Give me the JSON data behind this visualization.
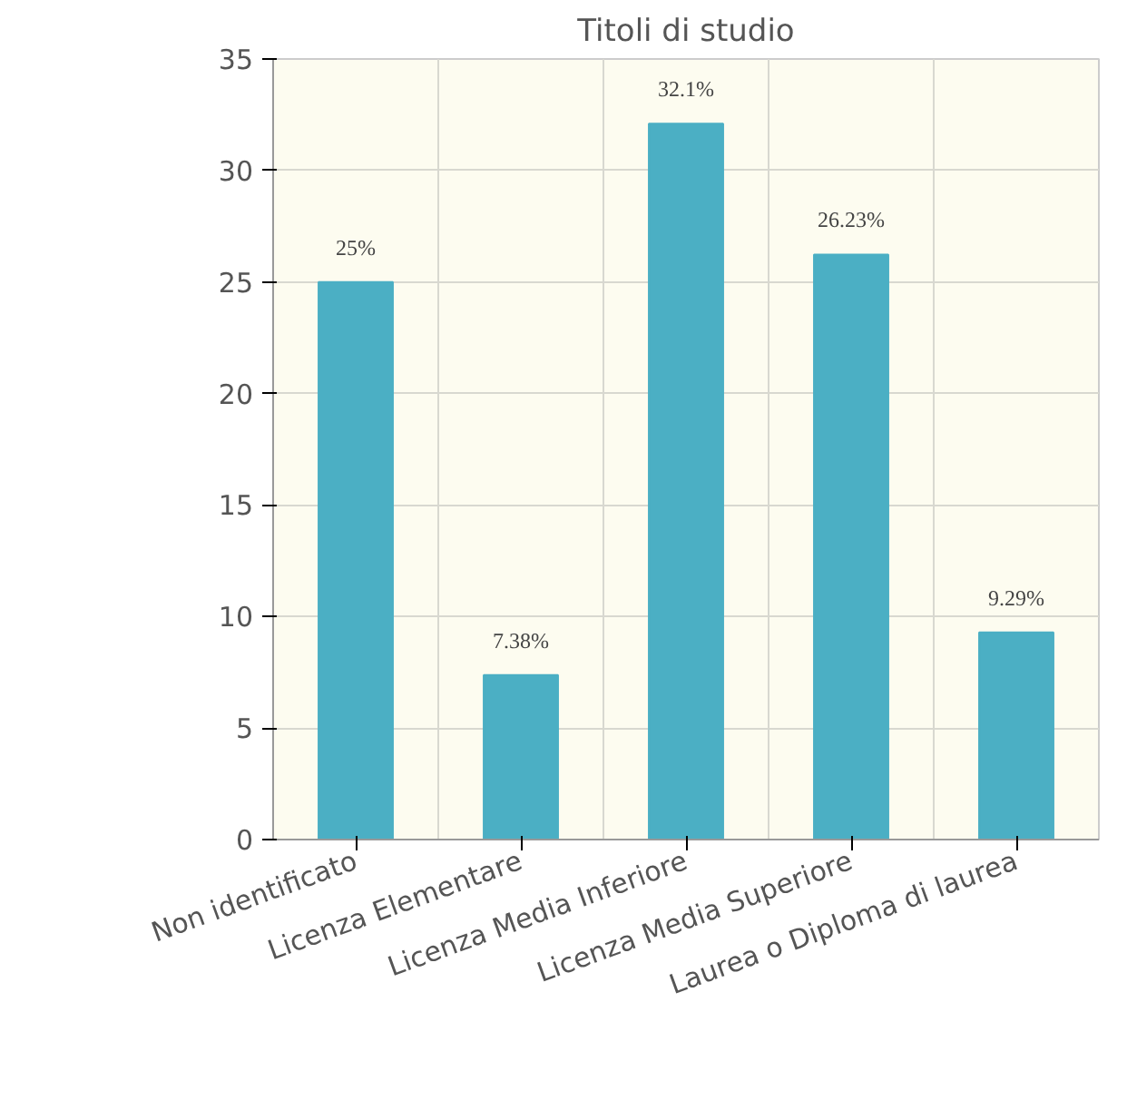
{
  "chart_data": {
    "type": "bar",
    "title": "Titoli di studio",
    "categories": [
      "Non identificato",
      "Licenza Elementare",
      "Licenza Media Inferiore",
      "Licenza Media Superiore",
      "Laurea o Diploma di laurea"
    ],
    "values": [
      25,
      7.38,
      32.1,
      26.23,
      9.29
    ],
    "value_labels": [
      "25%",
      "7.38%",
      "32.1%",
      "26.23%",
      "9.29%"
    ],
    "color": "#4bafc4",
    "ylim": [
      0,
      35
    ],
    "yticks": [
      0,
      5,
      10,
      15,
      20,
      25,
      30,
      35
    ],
    "grid": true
  }
}
